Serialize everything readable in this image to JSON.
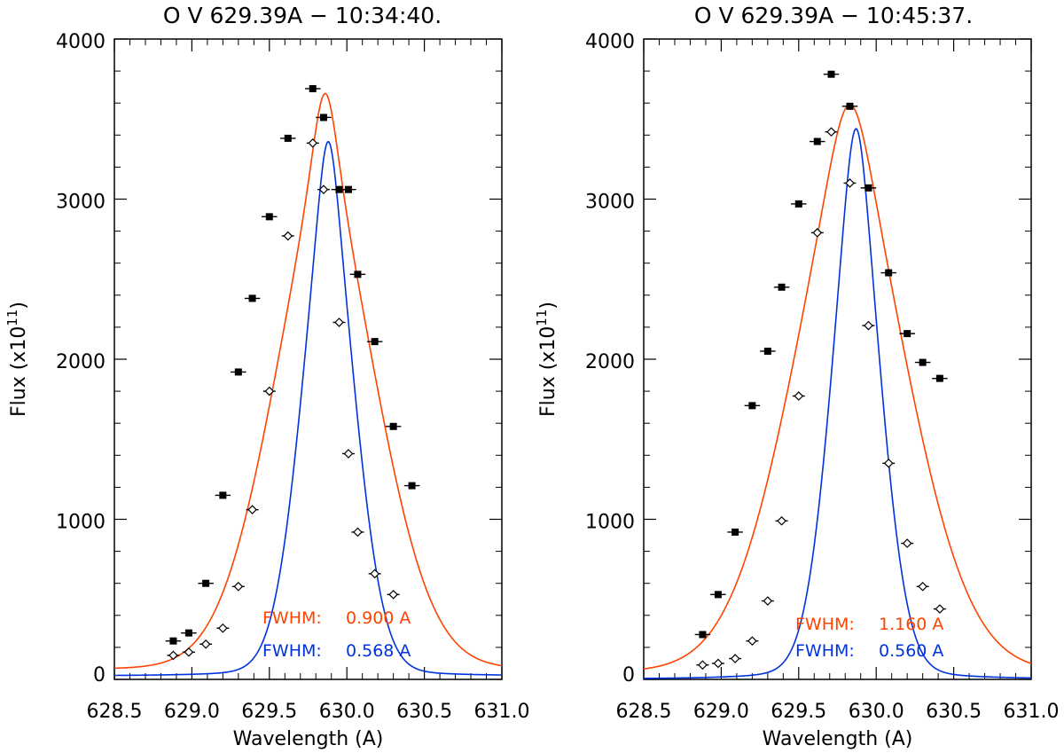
{
  "chart_data": [
    {
      "type": "scatter",
      "title": "O V 629.39A − 10:34:40.",
      "xlabel": "Wavelength (A)",
      "ylabel_prefix": "Flux (x10",
      "ylabel_exp": "11",
      "ylabel_suffix": ")",
      "xlim": [
        628.5,
        631.0
      ],
      "ylim": [
        0,
        4000
      ],
      "xticks": [
        "628.5",
        "629.0",
        "629.5",
        "630.0",
        "630.5",
        "631.0"
      ],
      "yticks": [
        "0",
        "1000",
        "2000",
        "3000",
        "4000"
      ],
      "series": [
        {
          "name": "observed (filled squares)",
          "marker": "square",
          "color": "#000000",
          "x": [
            628.88,
            628.98,
            629.09,
            629.2,
            629.3,
            629.39,
            629.5,
            629.62,
            629.78,
            629.85,
            629.95,
            630.01,
            630.07,
            630.18,
            630.3,
            630.42,
            630.54
          ],
          "y": [
            240,
            290,
            600,
            1150,
            1920,
            2380,
            2890,
            3380,
            3690,
            3510,
            3060,
            3060,
            2530,
            2110,
            1580,
            1210,
            0
          ],
          "xerr": 0.05
        },
        {
          "name": "corrected (open diamonds)",
          "marker": "diamond",
          "color": "#000000",
          "x": [
            628.88,
            628.98,
            629.09,
            629.2,
            629.3,
            629.39,
            629.5,
            629.62,
            629.78,
            629.85,
            629.95,
            630.01,
            630.07,
            630.18,
            630.3,
            630.42,
            630.54
          ],
          "y": [
            150,
            170,
            220,
            320,
            580,
            1060,
            1800,
            2770,
            3350,
            3060,
            2230,
            1410,
            920,
            660,
            530,
            0,
            0
          ],
          "xerr": 0.04
        }
      ],
      "fits": [
        {
          "name": "broad fit",
          "color": "#ff4400",
          "center": 629.86,
          "amplitude": 3600,
          "gauss_fwhm": 0.83,
          "lorentz_fwhm": 0.25,
          "baseline": 60
        },
        {
          "name": "narrow fit",
          "color": "#0033dd",
          "center": 629.88,
          "amplitude": 3340,
          "gauss_fwhm": 0.43,
          "lorentz_fwhm": 0.2,
          "baseline": 20
        }
      ],
      "annotations": [
        {
          "label": "FWHM:",
          "value": "0.900 A",
          "color": "#ff4400"
        },
        {
          "label": "FWHM:",
          "value": "0.568 A",
          "color": "#0033dd"
        }
      ]
    },
    {
      "type": "scatter",
      "title": "O V 629.39A − 10:45:37.",
      "xlabel": "Wavelength (A)",
      "ylabel_prefix": "Flux (x10",
      "ylabel_exp": "11",
      "ylabel_suffix": ")",
      "xlim": [
        628.5,
        631.0
      ],
      "ylim": [
        0,
        4000
      ],
      "xticks": [
        "628.5",
        "629.0",
        "629.5",
        "630.0",
        "630.5",
        "631.0"
      ],
      "yticks": [
        "0",
        "1000",
        "2000",
        "3000",
        "4000"
      ],
      "series": [
        {
          "name": "observed (filled squares)",
          "marker": "square",
          "color": "#000000",
          "x": [
            628.88,
            628.98,
            629.09,
            629.2,
            629.3,
            629.39,
            629.5,
            629.62,
            629.71,
            629.83,
            629.95,
            630.08,
            630.2,
            630.3,
            630.41,
            630.52
          ],
          "y": [
            280,
            530,
            920,
            1710,
            2050,
            2450,
            2970,
            3360,
            3780,
            3580,
            3070,
            2540,
            2160,
            1980,
            1880,
            0
          ],
          "xerr": 0.05
        },
        {
          "name": "corrected (open diamonds)",
          "marker": "diamond",
          "color": "#000000",
          "x": [
            628.88,
            628.98,
            629.09,
            629.2,
            629.3,
            629.39,
            629.5,
            629.62,
            629.71,
            629.83,
            629.95,
            630.08,
            630.2,
            630.3,
            630.41,
            630.52
          ],
          "y": [
            90,
            100,
            130,
            240,
            490,
            990,
            1770,
            2790,
            3420,
            3100,
            2210,
            1350,
            850,
            580,
            440,
            0
          ],
          "xerr": 0.04
        }
      ],
      "fits": [
        {
          "name": "broad fit",
          "color": "#ff4400",
          "center": 629.83,
          "amplitude": 3560,
          "gauss_fwhm": 0.95,
          "lorentz_fwhm": 0.42,
          "baseline": 30
        },
        {
          "name": "narrow fit",
          "color": "#0033dd",
          "center": 629.87,
          "amplitude": 3440,
          "gauss_fwhm": 0.4,
          "lorentz_fwhm": 0.22,
          "baseline": 0
        }
      ],
      "annotations": [
        {
          "label": "FWHM:",
          "value": "1.160 A",
          "color": "#ff4400"
        },
        {
          "label": "FWHM:",
          "value": "0.560 A",
          "color": "#0033dd"
        }
      ]
    }
  ]
}
